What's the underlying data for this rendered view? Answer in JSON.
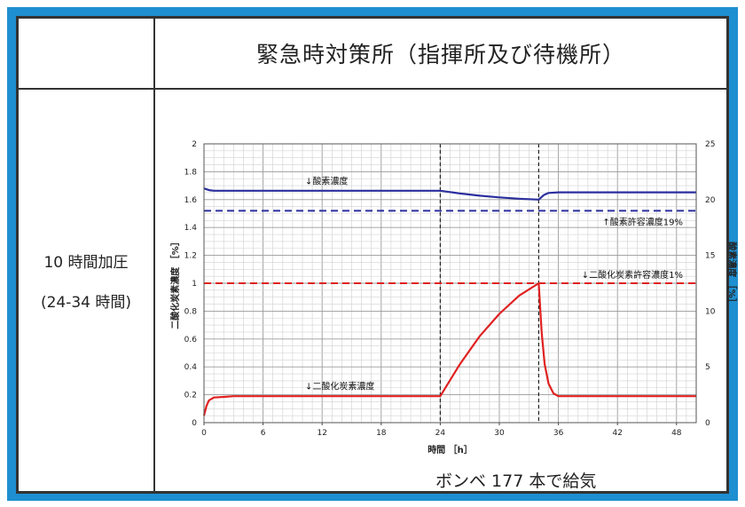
{
  "header": {
    "title": "緊急時対策所（指揮所及び待機所）"
  },
  "left": {
    "line1": "10 時間加圧",
    "line2": "(24-34 時間)"
  },
  "footer": {
    "caption": "ボンベ 177 本で給気"
  },
  "chart_data": {
    "type": "line",
    "xlabel": "時間 ［h］",
    "ylabel_left": "二酸化炭素濃度 ［%］",
    "ylabel_right": "酸素濃度 ［%］",
    "xlim": [
      0,
      50
    ],
    "xticks": [
      0,
      6,
      12,
      18,
      24,
      30,
      36,
      42,
      48
    ],
    "ylim_left": [
      0,
      2
    ],
    "yticks_left": [
      0,
      0.2,
      0.4,
      0.6,
      0.8,
      1,
      1.2,
      1.4,
      1.6,
      1.8,
      2
    ],
    "ylim_right": [
      0,
      25
    ],
    "yticks_right": [
      0,
      5,
      10,
      15,
      20,
      25
    ],
    "grid": true,
    "vlines": [
      24,
      34
    ],
    "series": [
      {
        "name": "酸素濃度",
        "axis": "right",
        "color": "#2b2f9e",
        "x": [
          0,
          0.5,
          1,
          3,
          6,
          12,
          18,
          24,
          26,
          28,
          30,
          32,
          34,
          34.5,
          35,
          36,
          40,
          48,
          50
        ],
        "y": [
          21.0,
          20.85,
          20.8,
          20.8,
          20.8,
          20.8,
          20.8,
          20.8,
          20.55,
          20.35,
          20.2,
          20.08,
          20.0,
          20.4,
          20.6,
          20.65,
          20.65,
          20.65,
          20.65
        ]
      },
      {
        "name": "二酸化炭素濃度",
        "axis": "left",
        "color": "#e02020",
        "x": [
          0,
          0.25,
          0.5,
          1,
          2,
          3,
          6,
          12,
          18,
          24,
          26,
          28,
          30,
          32,
          34,
          34.3,
          34.6,
          35,
          35.5,
          36,
          38,
          42,
          48,
          50
        ],
        "y": [
          0.05,
          0.12,
          0.16,
          0.18,
          0.185,
          0.19,
          0.19,
          0.19,
          0.19,
          0.19,
          0.42,
          0.62,
          0.78,
          0.91,
          1.0,
          0.65,
          0.42,
          0.28,
          0.21,
          0.19,
          0.19,
          0.19,
          0.19,
          0.19
        ]
      }
    ],
    "reference_lines": [
      {
        "label": "↑酸素許容濃度19%",
        "axis": "right",
        "value": 19,
        "color": "#2b2f9e"
      },
      {
        "label": "↓二酸化炭素許容濃度1%",
        "axis": "left",
        "value": 1,
        "color": "#e02020"
      }
    ],
    "annotations": [
      {
        "text": "↓酸素濃度",
        "x": 10,
        "y_left": 1.71
      },
      {
        "text": "↓二酸化炭素濃度",
        "x": 10,
        "y_left": 0.24
      }
    ]
  }
}
